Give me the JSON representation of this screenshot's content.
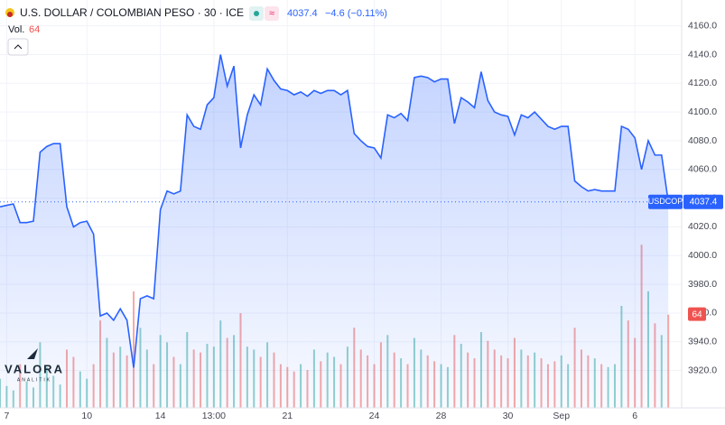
{
  "header": {
    "title": "U.S. DOLLAR / COLOMBIAN PESO · 30 · ICE",
    "last": "4037.4",
    "change": "−4.6 (−0.11%)",
    "volume_label": "Vol.",
    "volume_value": "64"
  },
  "logo": {
    "name": "VALORA",
    "subtitle": "ANALITIK"
  },
  "price_tag": {
    "symbol": "USDCOP",
    "value": "4037.4"
  },
  "volume_tag": "64",
  "chart_data": {
    "type": "line",
    "color": "#2962ff",
    "x": [
      0,
      1,
      2,
      3,
      4,
      5,
      6,
      7,
      8,
      9,
      10,
      11,
      12,
      13,
      14,
      15,
      16,
      17,
      18,
      19,
      20,
      21,
      22,
      23,
      24,
      25,
      26,
      27,
      28,
      29,
      30,
      31,
      32,
      33,
      34,
      35,
      36,
      37,
      38,
      39,
      40,
      41,
      42,
      43,
      44,
      45,
      46,
      47,
      48,
      49,
      50,
      51,
      52,
      53,
      54,
      55,
      56,
      57,
      58,
      59,
      60,
      61,
      62,
      63,
      64,
      65,
      66,
      67,
      68,
      69,
      70,
      71,
      72,
      73,
      74,
      75,
      76,
      77,
      78,
      79,
      80,
      81,
      82,
      83,
      84,
      85,
      86,
      87,
      88,
      89,
      90,
      91,
      92,
      93,
      94,
      95,
      96,
      97,
      98,
      99,
      100
    ],
    "values": [
      4034,
      4035,
      4036,
      4023,
      4023,
      4024,
      4072,
      4076,
      4078,
      4078,
      4034,
      4020,
      4023,
      4024,
      4015,
      3958,
      3960,
      3955,
      3963,
      3955,
      3922,
      3970,
      3972,
      3970,
      4032,
      4045,
      4043,
      4045,
      4098,
      4090,
      4088,
      4105,
      4110,
      4140,
      4118,
      4132,
      4075,
      4098,
      4112,
      4105,
      4130,
      4122,
      4116,
      4115,
      4112,
      4114,
      4111,
      4115,
      4113,
      4115,
      4115,
      4112,
      4115,
      4085,
      4080,
      4076,
      4075,
      4068,
      4098,
      4096,
      4099,
      4094,
      4124,
      4125,
      4124,
      4121,
      4123,
      4123,
      4092,
      4110,
      4107,
      4103,
      4128,
      4108,
      4100,
      4098,
      4097,
      4084,
      4098,
      4096,
      4100,
      4095,
      4090,
      4088,
      4090,
      4090,
      4052,
      4048,
      4045,
      4046,
      4045,
      4045,
      4045,
      4090,
      4088,
      4082,
      4060,
      4080,
      4070,
      4070,
      4037.4
    ],
    "volume": [
      20,
      15,
      12,
      30,
      18,
      14,
      45,
      28,
      22,
      16,
      40,
      35,
      25,
      20,
      30,
      60,
      48,
      38,
      42,
      36,
      80,
      55,
      40,
      30,
      50,
      45,
      35,
      30,
      52,
      40,
      38,
      44,
      42,
      60,
      48,
      50,
      65,
      42,
      40,
      35,
      45,
      38,
      30,
      28,
      25,
      30,
      26,
      40,
      32,
      38,
      35,
      30,
      42,
      55,
      40,
      36,
      30,
      45,
      50,
      38,
      34,
      30,
      48,
      40,
      36,
      32,
      30,
      28,
      50,
      44,
      38,
      34,
      52,
      46,
      40,
      36,
      34,
      48,
      40,
      36,
      38,
      34,
      30,
      32,
      36,
      30,
      55,
      40,
      36,
      34,
      30,
      28,
      30,
      70,
      60,
      48,
      112,
      80,
      58,
      50,
      64
    ],
    "volume_colors": {
      "up": "#26a69a",
      "down": "#ef5350"
    },
    "xlim": [
      0,
      102
    ],
    "xticks": [
      {
        "value": 1,
        "label": "7"
      },
      {
        "value": 13,
        "label": "10"
      },
      {
        "value": 24,
        "label": "14"
      },
      {
        "value": 32,
        "label": "13:00"
      },
      {
        "value": 43,
        "label": "21"
      },
      {
        "value": 56,
        "label": "24"
      },
      {
        "value": 66,
        "label": "28"
      },
      {
        "value": 76,
        "label": "30"
      },
      {
        "value": 84,
        "label": "Sep"
      },
      {
        "value": 95,
        "label": "6"
      }
    ],
    "ylim": [
      3894,
      4178
    ],
    "yticks": [
      {
        "value": 3920,
        "label": "3920.0"
      },
      {
        "value": 3940,
        "label": "3940.0"
      },
      {
        "value": 3960,
        "label": "3960.0"
      },
      {
        "value": 3980,
        "label": "3980.0"
      },
      {
        "value": 4000,
        "label": "4000.0"
      },
      {
        "value": 4020,
        "label": "4020.0"
      },
      {
        "value": 4040,
        "label": "4040.0"
      },
      {
        "value": 4060,
        "label": "4060.0"
      },
      {
        "value": 4080,
        "label": "4080.0"
      },
      {
        "value": 4100,
        "label": "4100.0"
      },
      {
        "value": 4120,
        "label": "4120.0"
      },
      {
        "value": 4140,
        "label": "4140.0"
      },
      {
        "value": 4160,
        "label": "4160.0"
      }
    ],
    "volume_ylim": [
      0,
      280
    ],
    "grid": true
  }
}
